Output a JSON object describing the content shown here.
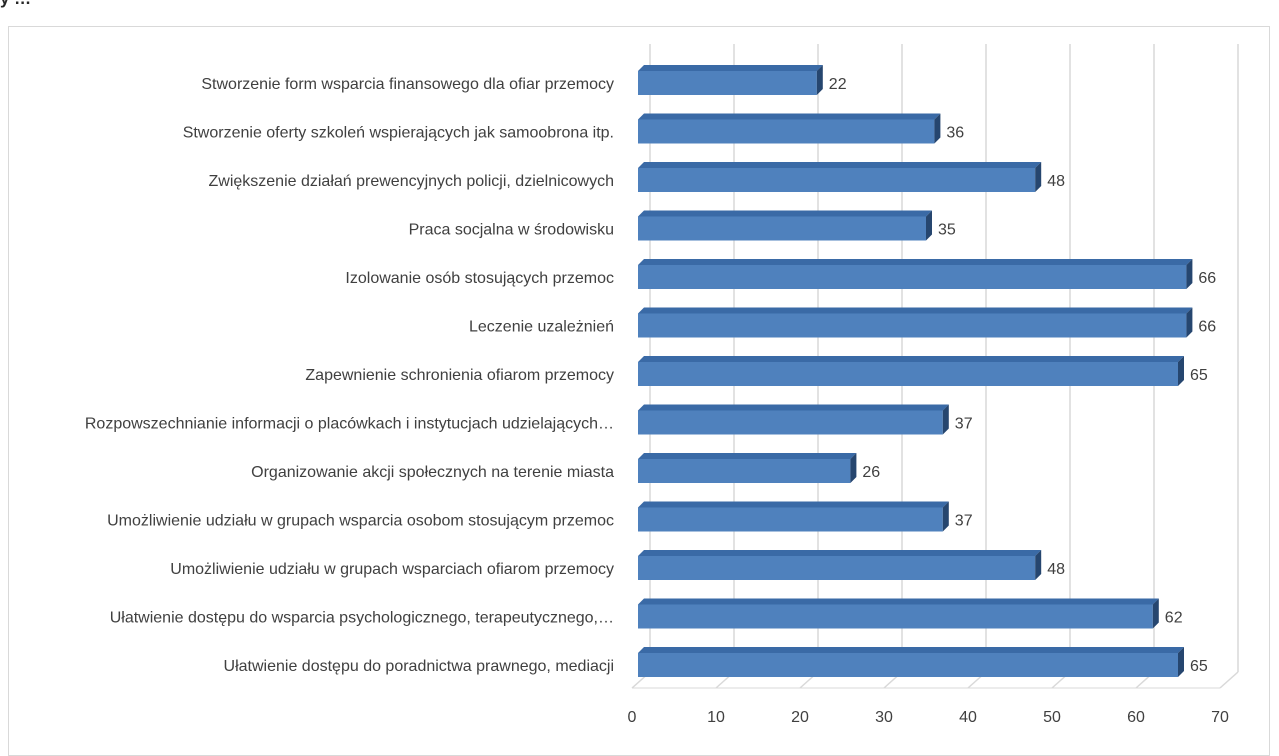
{
  "caption": "y …",
  "chart_data": {
    "type": "bar",
    "orientation": "horizontal",
    "style": "3d",
    "bar_color": "#4f81bd",
    "bar_top_color": "#3a6aa6",
    "bar_side_color": "#26466f",
    "grid": true,
    "xlim": [
      0,
      70
    ],
    "xticks": [
      0,
      10,
      20,
      30,
      40,
      50,
      60,
      70
    ],
    "categories": [
      "Stworzenie form wsparcia finansowego dla ofiar przemocy",
      "Stworzenie oferty szkoleń wspierających jak samoobrona itp.",
      "Zwiększenie działań prewencyjnych policji, dzielnicowych",
      "Praca socjalna w środowisku",
      "Izolowanie osób stosujących przemoc",
      "Leczenie uzależnień",
      "Zapewnienie schronienia ofiarom przemocy",
      "Rozpowszechnianie informacji o placówkach i instytucjach udzielających…",
      "Organizowanie akcji społecznych na terenie miasta",
      "Umożliwienie udziału w grupach wsparcia osobom stosującym przemoc",
      "Umożliwienie udziału w grupach wsparciach ofiarom przemocy",
      "Ułatwienie dostępu do wsparcia psychologicznego, terapeutycznego,…",
      "Ułatwienie dostępu do poradnictwa prawnego, mediacji"
    ],
    "values": [
      22,
      36,
      48,
      35,
      66,
      66,
      65,
      37,
      26,
      37,
      48,
      62,
      65
    ]
  }
}
